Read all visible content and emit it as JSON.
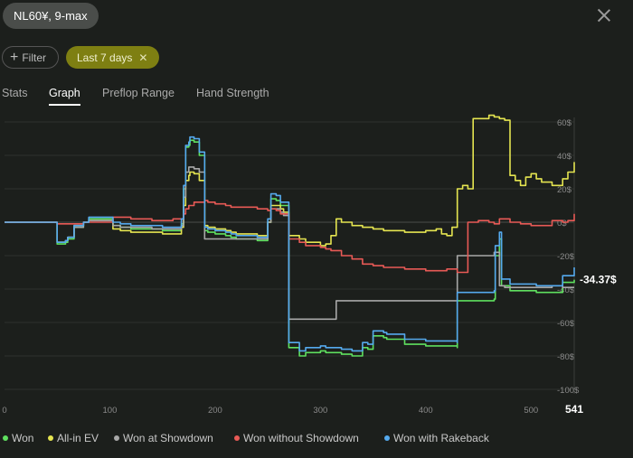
{
  "header": {
    "title": "NL60¥, 9-max"
  },
  "toolbar": {
    "filter_label": "Filter",
    "period_label": "Last 7 days"
  },
  "tabs": [
    {
      "label": "Stats",
      "active": false
    },
    {
      "label": "Graph",
      "active": true
    },
    {
      "label": "Preflop Range",
      "active": false
    },
    {
      "label": "Hand Strength",
      "active": false
    }
  ],
  "colors": {
    "background": "#1c1f1c",
    "accent": "#7e7f12"
  },
  "chart_data": {
    "type": "line",
    "xlim": [
      0,
      541
    ],
    "ylim": [
      -100,
      60
    ],
    "x_ticks": [
      "0",
      "100",
      "200",
      "300",
      "400",
      "500",
      "541"
    ],
    "y_ticks": [
      "60$",
      "40$",
      "20$",
      "0$",
      "-20$",
      "-40$",
      "-60$",
      "-80$",
      "-100$"
    ],
    "end_label": "-34.37$",
    "legend_position": "bottom",
    "grid": true,
    "series": [
      {
        "name": "Won",
        "color": "#5fe05f",
        "x": [
          0,
          45,
          50,
          58,
          60,
          66,
          75,
          80,
          100,
          103,
          110,
          120,
          140,
          150,
          160,
          168,
          170,
          172,
          175,
          176,
          180,
          185,
          190,
          193,
          200,
          210,
          215,
          220,
          240,
          250,
          250,
          253,
          258,
          262,
          270,
          280,
          286,
          300,
          300,
          305,
          320,
          330,
          340,
          345,
          350,
          350,
          360,
          363,
          380,
          400,
          430,
          430,
          465,
          466,
          470,
          470,
          472,
          480,
          505,
          530,
          541
        ],
        "y": [
          0,
          0,
          -13,
          -12,
          -10,
          -3,
          0,
          2,
          2,
          -2,
          -3,
          -4,
          -4,
          -5,
          -5,
          -1,
          20,
          45,
          46,
          49,
          48,
          40,
          -5,
          -6,
          -7,
          -8,
          -9,
          -10,
          -11,
          -10,
          0,
          14,
          13,
          10,
          -75,
          -80,
          -78,
          -78,
          -77,
          -78,
          -79,
          -80,
          -75,
          -76,
          -70,
          -68,
          -69,
          -70,
          -73,
          -74,
          -75,
          -47,
          -46,
          -20,
          -19,
          -10,
          -38,
          -41,
          -42,
          -36,
          -34.37
        ]
      },
      {
        "name": "All-in EV",
        "color": "#e5e550",
        "x": [
          0,
          45,
          50,
          58,
          60,
          66,
          75,
          80,
          100,
          103,
          110,
          120,
          140,
          150,
          160,
          168,
          170,
          172,
          175,
          176,
          180,
          185,
          190,
          193,
          200,
          210,
          215,
          220,
          240,
          250,
          250,
          253,
          258,
          262,
          265,
          270,
          280,
          286,
          300,
          305,
          310,
          315,
          320,
          330,
          340,
          350,
          360,
          380,
          400,
          410,
          415,
          420,
          425,
          430,
          435,
          440,
          445,
          460,
          465,
          470,
          475,
          480,
          485,
          490,
          495,
          500,
          505,
          510,
          520,
          530,
          535,
          541
        ],
        "y": [
          0,
          0,
          -12,
          -11,
          -9,
          -2,
          0,
          1,
          1,
          -4,
          -5,
          -6,
          -6,
          -7,
          -7,
          -3,
          10,
          25,
          28,
          30,
          29,
          25,
          -2,
          -3,
          -4,
          -5,
          -6,
          -7,
          -8,
          -8,
          0,
          10,
          10,
          8,
          6,
          -8,
          -10,
          -12,
          -14,
          -13,
          -8,
          2,
          0,
          -2,
          -3,
          -4,
          -5,
          -6,
          -5,
          -4,
          -7,
          -8,
          -3,
          20,
          22,
          20,
          62,
          64,
          63,
          62,
          61,
          28,
          25,
          22,
          27,
          29,
          26,
          24,
          22,
          26,
          30,
          36
        ]
      },
      {
        "name": "Won at Showdown",
        "color": "#a8a8a8",
        "x": [
          0,
          45,
          50,
          58,
          60,
          66,
          75,
          80,
          100,
          103,
          110,
          120,
          140,
          160,
          168,
          170,
          172,
          175,
          180,
          185,
          190,
          193,
          200,
          210,
          220,
          240,
          250,
          250,
          253,
          258,
          262,
          265,
          270,
          280,
          286,
          300,
          312,
          315,
          320,
          340,
          360,
          380,
          400,
          420,
          430,
          430,
          440,
          465,
          470,
          475,
          480,
          490,
          505,
          520,
          530,
          541
        ],
        "y": [
          0,
          0,
          -12,
          -11,
          -9,
          -3,
          0,
          1,
          1,
          -2,
          -3,
          -3,
          -4,
          -4,
          -2,
          15,
          30,
          33,
          32,
          30,
          -10,
          -10,
          -10,
          -10,
          -10,
          -10,
          -10,
          0,
          8,
          8,
          6,
          4,
          -58,
          -58,
          -58,
          -58,
          -58,
          -47,
          -47,
          -47,
          -47,
          -47,
          -47,
          -47,
          -47,
          -20,
          -20,
          -18,
          -38,
          -39,
          -39,
          -39,
          -39,
          -38,
          -39,
          -39
        ]
      },
      {
        "name": "Won without Showdown",
        "color": "#e85a56",
        "x": [
          0,
          45,
          50,
          58,
          66,
          75,
          80,
          100,
          103,
          110,
          120,
          140,
          160,
          168,
          170,
          172,
          175,
          180,
          185,
          190,
          193,
          200,
          210,
          215,
          220,
          240,
          250,
          250,
          253,
          258,
          262,
          270,
          280,
          286,
          300,
          305,
          310,
          320,
          330,
          340,
          350,
          360,
          380,
          400,
          420,
          430,
          440,
          450,
          460,
          465,
          470,
          480,
          490,
          500,
          510,
          520,
          530,
          535,
          541
        ],
        "y": [
          0,
          0,
          -1,
          -1,
          -1,
          0,
          0,
          0,
          3,
          3,
          2,
          1,
          2,
          2,
          5,
          8,
          10,
          12,
          12,
          13,
          12,
          11,
          10,
          9,
          9,
          8,
          7,
          7,
          8,
          7,
          5,
          -10,
          -12,
          -14,
          -15,
          -16,
          -17,
          -20,
          -22,
          -25,
          -26,
          -27,
          -28,
          -29,
          -28,
          -30,
          0,
          1,
          0,
          -1,
          2,
          0,
          -1,
          -2,
          -2,
          1,
          0,
          1,
          5
        ]
      },
      {
        "name": "Won with Rakeback",
        "color": "#55aaee",
        "x": [
          0,
          45,
          50,
          58,
          60,
          66,
          75,
          80,
          100,
          103,
          110,
          120,
          140,
          150,
          160,
          168,
          170,
          172,
          175,
          176,
          180,
          185,
          190,
          193,
          200,
          210,
          215,
          220,
          240,
          250,
          250,
          253,
          258,
          262,
          270,
          280,
          286,
          300,
          300,
          305,
          320,
          330,
          340,
          345,
          350,
          350,
          360,
          363,
          380,
          400,
          430,
          430,
          465,
          466,
          470,
          470,
          472,
          480,
          505,
          530,
          541
        ],
        "y": [
          0,
          0,
          -12,
          -11,
          -9,
          -2,
          0,
          3,
          3,
          0,
          -1,
          -2,
          -2,
          -3,
          -3,
          2,
          22,
          46,
          48,
          51,
          50,
          42,
          -3,
          -4,
          -5,
          -6,
          -7,
          -8,
          -9,
          -8,
          2,
          17,
          16,
          12,
          -72,
          -77,
          -75,
          -75,
          -74,
          -75,
          -76,
          -77,
          -72,
          -73,
          -67,
          -65,
          -66,
          -67,
          -70,
          -71,
          -72,
          -42,
          -41,
          -14,
          -13,
          -6,
          -34,
          -37,
          -38,
          -32,
          -27
        ]
      }
    ]
  }
}
